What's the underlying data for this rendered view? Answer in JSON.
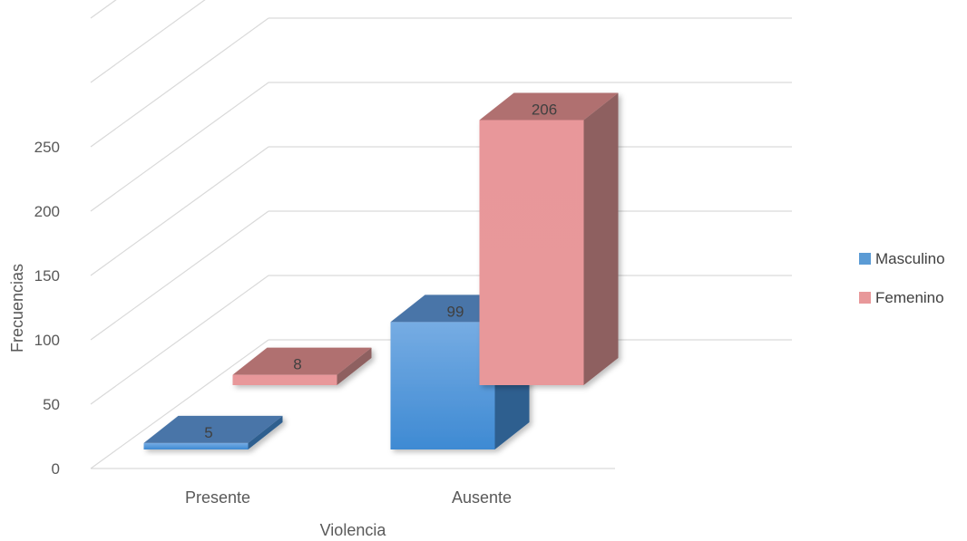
{
  "chart_data": {
    "type": "bar",
    "style": "3d-clustered-column",
    "title": "",
    "xlabel": "Violencia",
    "ylabel": "Frecuencias",
    "categories": [
      "Presente",
      "Ausente"
    ],
    "series": [
      {
        "name": "Masculino",
        "values": [
          5,
          99
        ],
        "color": "#5B9BD5"
      },
      {
        "name": "Femenino",
        "values": [
          8,
          206
        ],
        "color": "#E8989A"
      }
    ],
    "ylim": [
      0,
      250
    ],
    "yticks": [
      0,
      50,
      100,
      150,
      200,
      250
    ],
    "grid": true,
    "legend": "right"
  }
}
